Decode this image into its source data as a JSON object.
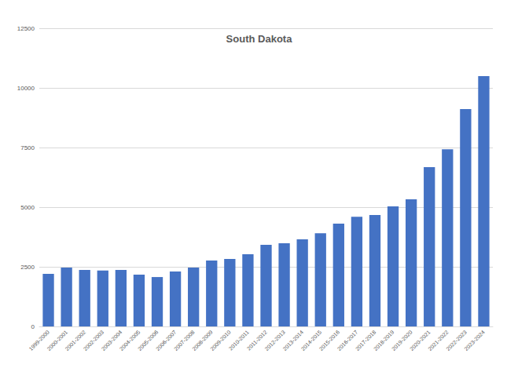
{
  "chart_data": {
    "type": "bar",
    "title": "South Dakota",
    "categories": [
      "1999-2000",
      "2000-2001",
      "2001-2002",
      "2002-2003",
      "2003-2004",
      "2004-2005",
      "2005-2006",
      "2006-2007",
      "2007-2008",
      "2008-2009",
      "2009-2010",
      "2010-2011",
      "2011-2012",
      "2012-2013",
      "2013-2014",
      "2014-2015",
      "2015-2016",
      "2016-2017",
      "2017-2018",
      "2018-2019",
      "2019-2020",
      "2020-2021",
      "2021-2022",
      "2022-2023",
      "2023-2024"
    ],
    "values": [
      2200,
      2470,
      2370,
      2340,
      2370,
      2170,
      2070,
      2300,
      2470,
      2760,
      2830,
      3030,
      3420,
      3490,
      3650,
      3910,
      4310,
      4600,
      4670,
      5030,
      5330,
      6680,
      7430,
      9110,
      10490
    ],
    "color": "#4472c4",
    "ylim": [
      0,
      12500
    ],
    "yticks": [
      0,
      2500,
      5000,
      7500,
      10000,
      12500
    ],
    "grid": true
  }
}
